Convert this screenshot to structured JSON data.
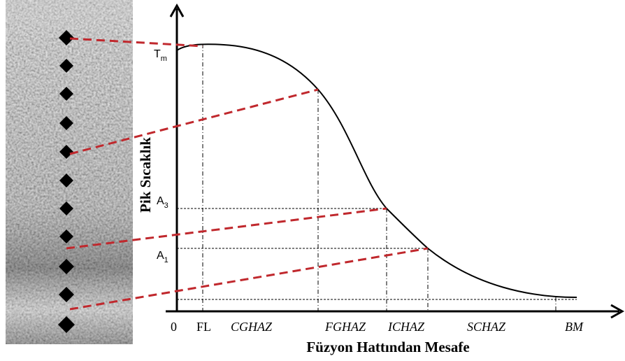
{
  "y_axis_label": "Pik Sıcaklık",
  "x_axis_label": "Füzyon Hattından Mesafe",
  "temperature_labels": [
    {
      "main": "T",
      "sub": "m"
    },
    {
      "main": "A",
      "sub": "3"
    },
    {
      "main": "A",
      "sub": "1"
    }
  ],
  "zones": [
    "0",
    "FL",
    "CGHAZ",
    "FGHAZ",
    "ICHAZ",
    "SCHAZ",
    "BM"
  ]
}
